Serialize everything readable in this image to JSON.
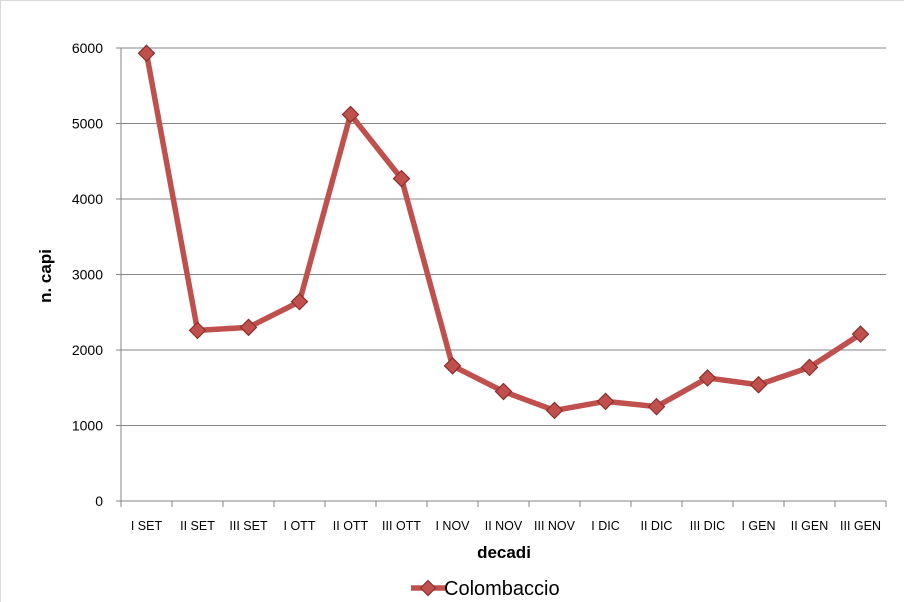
{
  "chart_data": {
    "type": "line",
    "title": "",
    "xlabel": "decadi",
    "ylabel": "n. capi",
    "ylim": [
      0,
      6000
    ],
    "yticks": [
      0,
      1000,
      2000,
      3000,
      4000,
      5000,
      6000
    ],
    "grid": true,
    "legend_position": "bottom",
    "categories": [
      "I SET",
      "II SET",
      "III SET",
      "I OTT",
      "II OTT",
      "III OTT",
      "I NOV",
      "II NOV",
      "III NOV",
      "I DIC",
      "II DIC",
      "III DIC",
      "I GEN",
      "II GEN",
      "III GEN"
    ],
    "series": [
      {
        "name": "Colombaccio",
        "color": "#c0504d",
        "marker": "diamond",
        "values": [
          5930,
          2260,
          2300,
          2640,
          5120,
          4270,
          1790,
          1450,
          1200,
          1320,
          1250,
          1630,
          1540,
          1770,
          2210
        ]
      }
    ]
  }
}
